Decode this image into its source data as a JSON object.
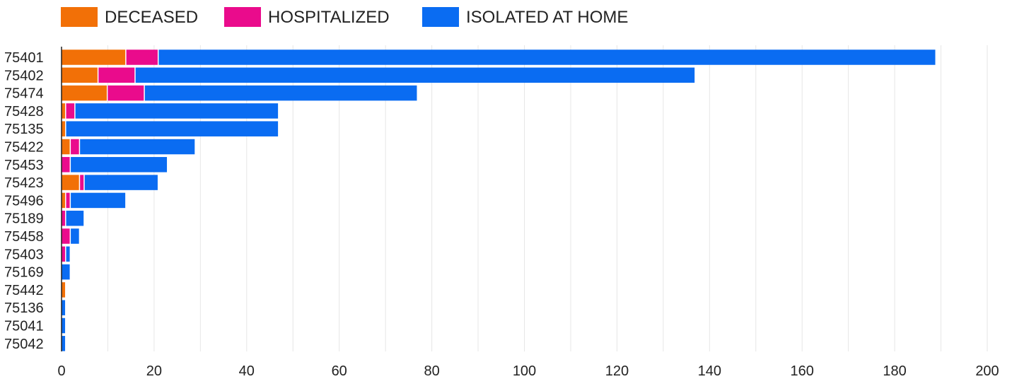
{
  "chart_data": {
    "type": "bar",
    "orientation": "horizontal",
    "stacked": true,
    "categories": [
      "75401",
      "75402",
      "75474",
      "75428",
      "75135",
      "75422",
      "75453",
      "75423",
      "75496",
      "75189",
      "75458",
      "75403",
      "75169",
      "75442",
      "75136",
      "75041",
      "75042"
    ],
    "series": [
      {
        "name": "DECEASED",
        "color": "#f27007",
        "values": [
          14,
          8,
          10,
          1,
          1,
          2,
          0,
          4,
          1,
          0,
          0,
          0,
          0,
          1,
          0,
          0,
          0
        ]
      },
      {
        "name": "HOSPITALIZED",
        "color": "#ea0b8c",
        "values": [
          7,
          8,
          8,
          2,
          0,
          2,
          2,
          1,
          1,
          1,
          2,
          1,
          0,
          0,
          0,
          0,
          0
        ]
      },
      {
        "name": "ISOLATED AT HOME",
        "color": "#0a6cf2",
        "values": [
          168,
          121,
          59,
          44,
          46,
          25,
          21,
          16,
          12,
          4,
          2,
          1,
          2,
          0,
          1,
          1,
          1
        ]
      }
    ],
    "xlim": [
      0,
      200
    ],
    "xticks": [
      "0",
      "20",
      "40",
      "60",
      "80",
      "100",
      "120",
      "140",
      "160",
      "180",
      "200"
    ],
    "xtick_values": [
      0,
      20,
      40,
      60,
      80,
      100,
      120,
      140,
      160,
      180,
      200
    ],
    "grid": true,
    "legend_position": "top-left",
    "title": "",
    "xlabel": "",
    "ylabel": ""
  }
}
